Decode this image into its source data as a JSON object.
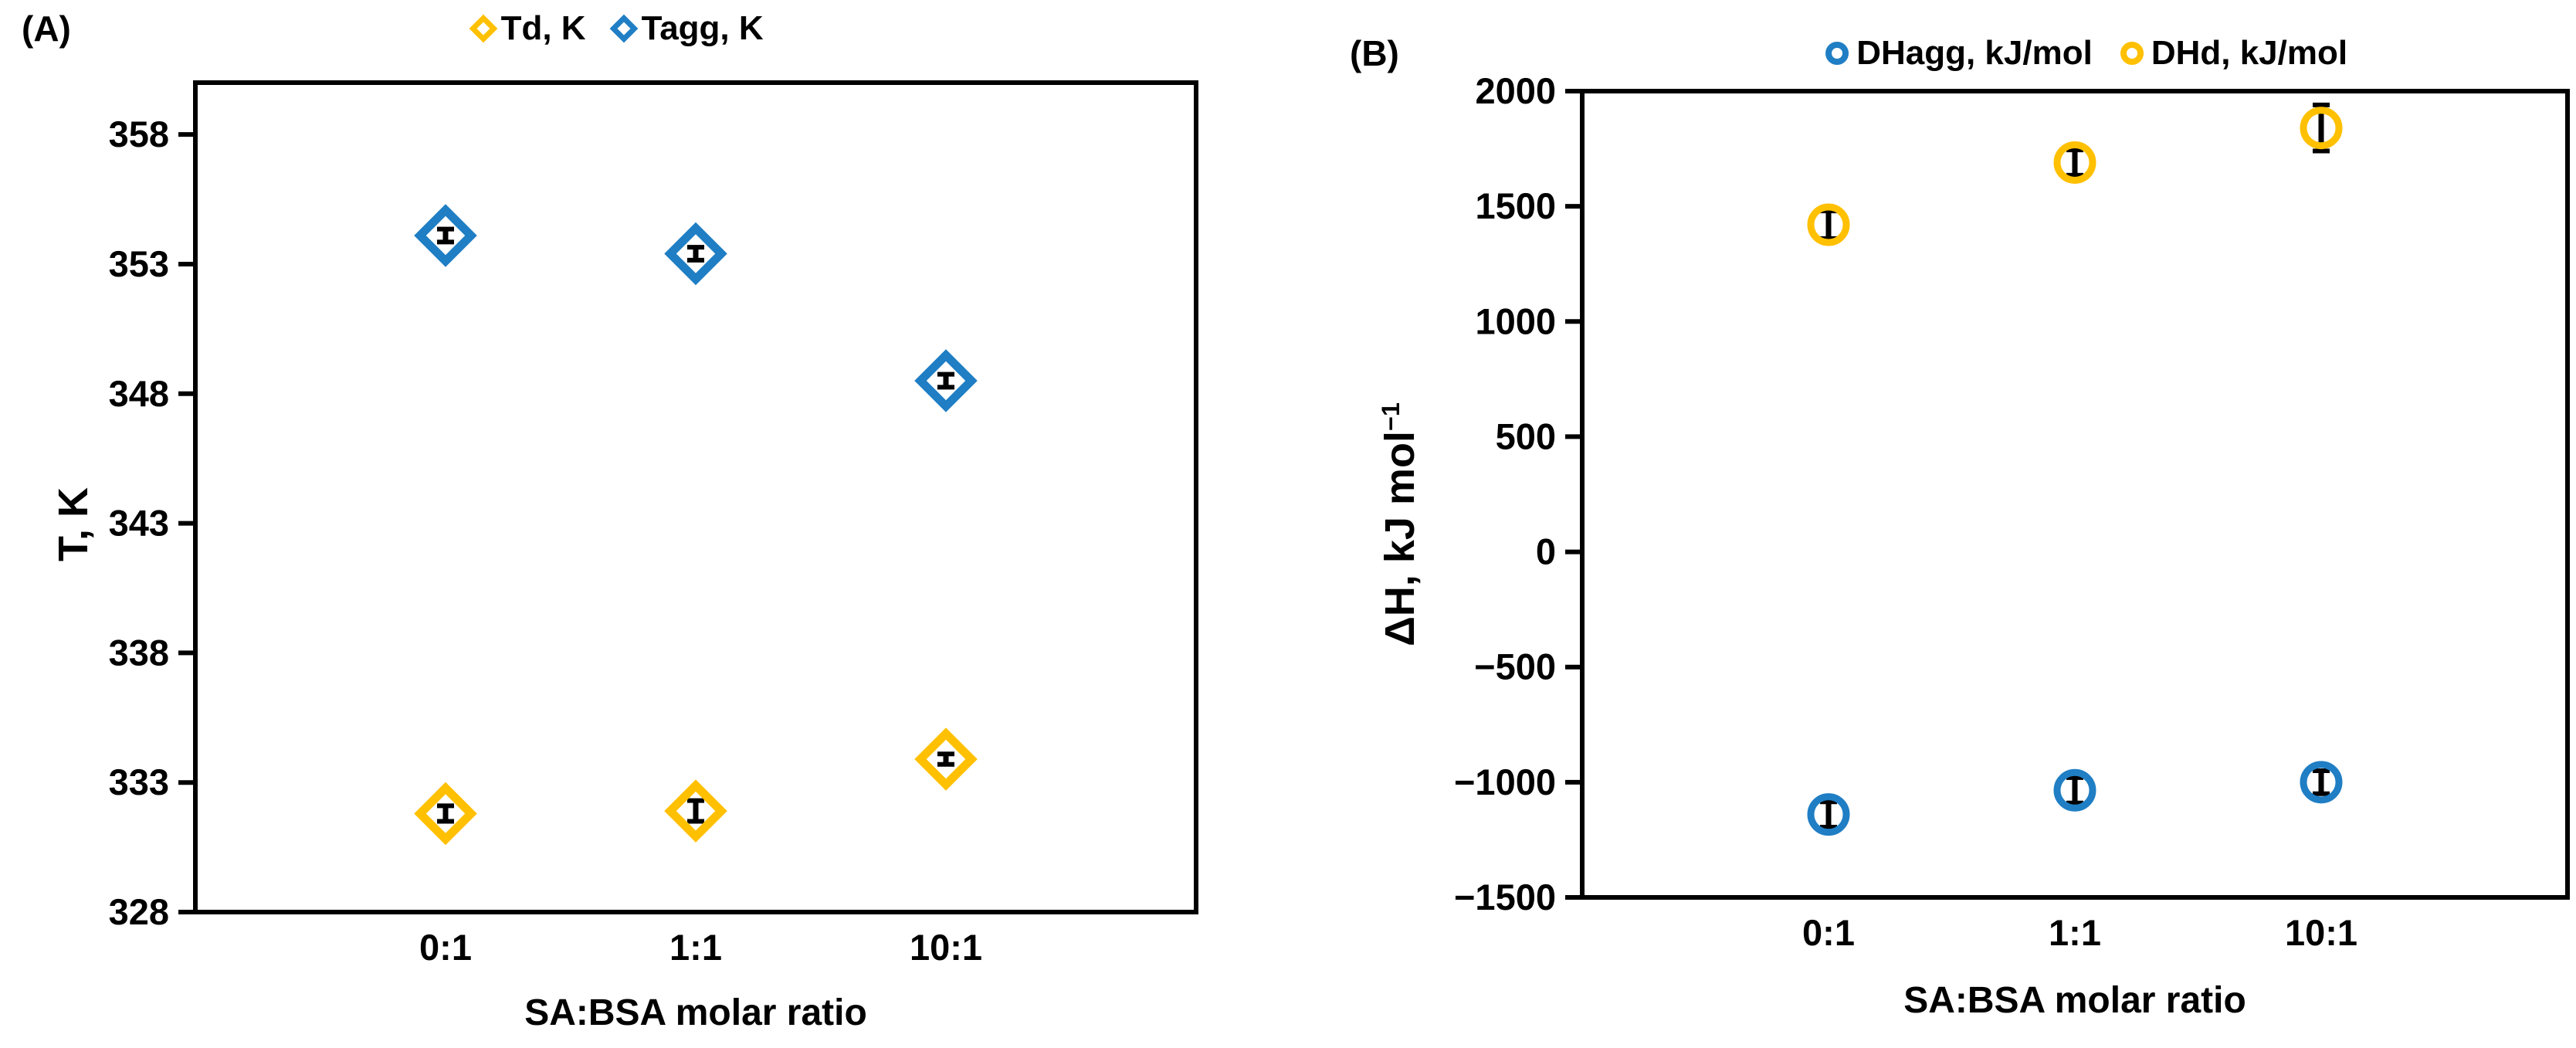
{
  "chart_data": [
    {
      "id": "A",
      "type": "scatter",
      "panel_label": "(A)",
      "xlabel": "SA:BSA molar ratio",
      "ylabel": "T, K",
      "categories": [
        "0:1",
        "1:1",
        "10:1"
      ],
      "series": [
        {
          "name": "Td, K",
          "marker": "diamond",
          "color": "#FFC000",
          "values": [
            331.8,
            331.9,
            333.9
          ],
          "errors": [
            0.3,
            0.4,
            0.2
          ]
        },
        {
          "name": "Tagg, K",
          "marker": "diamond",
          "color": "#1F7EC4",
          "values": [
            354.1,
            353.4,
            348.5
          ],
          "errors": [
            0.25,
            0.25,
            0.25
          ]
        }
      ],
      "ylim": [
        328,
        360
      ],
      "yticks": [
        328,
        333,
        338,
        343,
        348,
        353,
        358
      ],
      "ytick_labels": [
        "328",
        "333",
        "338",
        "343",
        "348",
        "353",
        "358"
      ],
      "legend_position": "top",
      "grid": false,
      "error_bar_color": "#000000",
      "axis_color": "#000000"
    },
    {
      "id": "B",
      "type": "scatter",
      "panel_label": "(B)",
      "xlabel": "SA:BSA molar ratio",
      "ylabel": "ΔH, kJ mol⁻¹",
      "ylabel_main": "ΔH, kJ mol",
      "ylabel_sup": "−1",
      "categories": [
        "0:1",
        "1:1",
        "10:1"
      ],
      "series": [
        {
          "name": "DHagg, kJ/mol",
          "marker": "circle",
          "color": "#1F7EC4",
          "values": [
            -1140,
            -1035,
            -1000
          ],
          "errors": [
            55,
            55,
            50
          ]
        },
        {
          "name": "DHd, kJ/mol",
          "marker": "circle",
          "color": "#FFC000",
          "values": [
            1420,
            1690,
            1840
          ],
          "errors": [
            60,
            55,
            100
          ]
        }
      ],
      "ylim": [
        -1500,
        2000
      ],
      "yticks": [
        2000,
        1500,
        1000,
        500,
        0,
        -500,
        -1000,
        -1500
      ],
      "ytick_labels": [
        "2000",
        "1500",
        "1000",
        "500",
        "0",
        "−500",
        "−1000",
        "−1500"
      ],
      "legend_position": "top",
      "grid": false,
      "error_bar_color": "#000000",
      "axis_color": "#000000"
    }
  ]
}
